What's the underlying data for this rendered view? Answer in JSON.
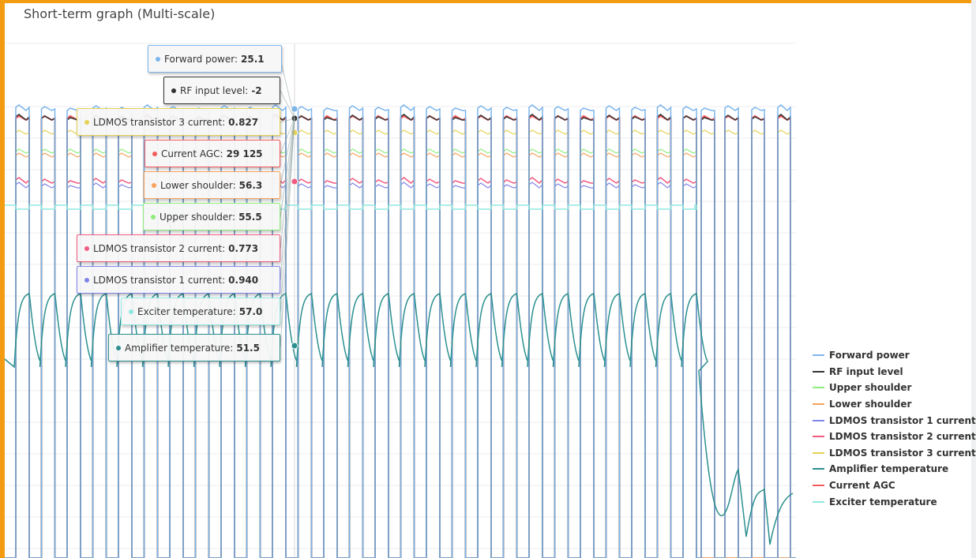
{
  "page": {
    "title": "Short-term graph (Multi-scale)",
    "accent_color": "#f39c12"
  },
  "chart_data": {
    "type": "line",
    "title": "Short-term graph (Multi-scale)",
    "xlabel": "",
    "ylabel": "",
    "grid": true,
    "legend_position": "right",
    "multi_scale": true,
    "series": [
      {
        "name": "Forward power",
        "color": "#7cb5ec",
        "current_value": "25.1"
      },
      {
        "name": "RF input level",
        "color": "#333333",
        "current_value": "-2"
      },
      {
        "name": "Upper shoulder",
        "color": "#90ed7d",
        "current_value": "55.5"
      },
      {
        "name": "Lower shoulder",
        "color": "#f7a35c",
        "current_value": "56.3"
      },
      {
        "name": "LDMOS transistor 1 current",
        "color": "#8085e9",
        "current_value": "0.940"
      },
      {
        "name": "LDMOS transistor 2 current",
        "color": "#f15c80",
        "current_value": "0.773"
      },
      {
        "name": "LDMOS transistor 3 current",
        "color": "#e4d354",
        "current_value": "0.827"
      },
      {
        "name": "Amplifier temperature",
        "color": "#2b908f",
        "current_value": "51.5"
      },
      {
        "name": "Current AGC",
        "color": "#f45b5b",
        "current_value": "29 125"
      },
      {
        "name": "Exciter temperature",
        "color": "#91e8e1",
        "current_value": "57.0"
      }
    ],
    "legend": {
      "items": [
        "Forward power",
        "RF input level",
        "Upper shoulder",
        "Lower shoulder",
        "LDMOS transistor 1 current",
        "LDMOS transistor 2 current",
        "LDMOS transistor 3 current",
        "Amplifier temperature",
        "Current AGC",
        "Exciter temperature"
      ]
    },
    "tooltip": {
      "forward_power": {
        "label": "Forward power:",
        "value": "25.1"
      },
      "rf_input": {
        "label": "RF input level:",
        "value": "-2"
      },
      "ldmos3": {
        "label": "LDMOS transistor 3 current:",
        "value": "0.827"
      },
      "agc": {
        "label": "Current AGC:",
        "value": "29 125"
      },
      "lower_shoulder": {
        "label": "Lower shoulder:",
        "value": "56.3"
      },
      "upper_shoulder": {
        "label": "Upper shoulder:",
        "value": "55.5"
      },
      "ldmos2": {
        "label": "LDMOS transistor 2 current:",
        "value": "0.773"
      },
      "ldmos1": {
        "label": "LDMOS transistor 1 current:",
        "value": "0.940"
      },
      "exciter_temp": {
        "label": "Exciter temperature:",
        "value": "57.0"
      },
      "amp_temp": {
        "label": "Amplifier temperature:",
        "value": "51.5"
      }
    }
  }
}
